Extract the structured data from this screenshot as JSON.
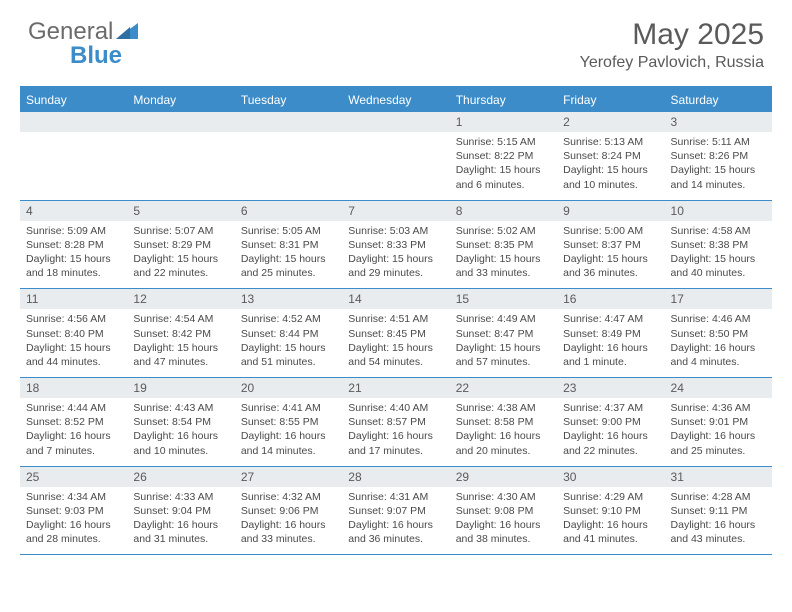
{
  "brand": {
    "left": "General",
    "right": "Blue",
    "tri_color": "#3b8cc9"
  },
  "header": {
    "month": "May 2025",
    "location": "Yerofey Pavlovich, Russia"
  },
  "colors": {
    "accent": "#3b8cc9",
    "header_bg": "#3b8cc9",
    "daynum_bg": "#e9ecef",
    "text": "#5a5a5a",
    "body_text": "#4a4a4a",
    "border": "#3b8cc9",
    "background": "#ffffff"
  },
  "typography": {
    "month_title_fontsize": 30,
    "location_fontsize": 16,
    "dow_fontsize": 12,
    "daynum_fontsize": 12,
    "body_fontsize": 10.5
  },
  "dow": [
    "Sunday",
    "Monday",
    "Tuesday",
    "Wednesday",
    "Thursday",
    "Friday",
    "Saturday"
  ],
  "weeks": [
    [
      {
        "n": "",
        "lines": []
      },
      {
        "n": "",
        "lines": []
      },
      {
        "n": "",
        "lines": []
      },
      {
        "n": "",
        "lines": []
      },
      {
        "n": "1",
        "lines": [
          "Sunrise: 5:15 AM",
          "Sunset: 8:22 PM",
          "Daylight: 15 hours",
          "and 6 minutes."
        ]
      },
      {
        "n": "2",
        "lines": [
          "Sunrise: 5:13 AM",
          "Sunset: 8:24 PM",
          "Daylight: 15 hours",
          "and 10 minutes."
        ]
      },
      {
        "n": "3",
        "lines": [
          "Sunrise: 5:11 AM",
          "Sunset: 8:26 PM",
          "Daylight: 15 hours",
          "and 14 minutes."
        ]
      }
    ],
    [
      {
        "n": "4",
        "lines": [
          "Sunrise: 5:09 AM",
          "Sunset: 8:28 PM",
          "Daylight: 15 hours",
          "and 18 minutes."
        ]
      },
      {
        "n": "5",
        "lines": [
          "Sunrise: 5:07 AM",
          "Sunset: 8:29 PM",
          "Daylight: 15 hours",
          "and 22 minutes."
        ]
      },
      {
        "n": "6",
        "lines": [
          "Sunrise: 5:05 AM",
          "Sunset: 8:31 PM",
          "Daylight: 15 hours",
          "and 25 minutes."
        ]
      },
      {
        "n": "7",
        "lines": [
          "Sunrise: 5:03 AM",
          "Sunset: 8:33 PM",
          "Daylight: 15 hours",
          "and 29 minutes."
        ]
      },
      {
        "n": "8",
        "lines": [
          "Sunrise: 5:02 AM",
          "Sunset: 8:35 PM",
          "Daylight: 15 hours",
          "and 33 minutes."
        ]
      },
      {
        "n": "9",
        "lines": [
          "Sunrise: 5:00 AM",
          "Sunset: 8:37 PM",
          "Daylight: 15 hours",
          "and 36 minutes."
        ]
      },
      {
        "n": "10",
        "lines": [
          "Sunrise: 4:58 AM",
          "Sunset: 8:38 PM",
          "Daylight: 15 hours",
          "and 40 minutes."
        ]
      }
    ],
    [
      {
        "n": "11",
        "lines": [
          "Sunrise: 4:56 AM",
          "Sunset: 8:40 PM",
          "Daylight: 15 hours",
          "and 44 minutes."
        ]
      },
      {
        "n": "12",
        "lines": [
          "Sunrise: 4:54 AM",
          "Sunset: 8:42 PM",
          "Daylight: 15 hours",
          "and 47 minutes."
        ]
      },
      {
        "n": "13",
        "lines": [
          "Sunrise: 4:52 AM",
          "Sunset: 8:44 PM",
          "Daylight: 15 hours",
          "and 51 minutes."
        ]
      },
      {
        "n": "14",
        "lines": [
          "Sunrise: 4:51 AM",
          "Sunset: 8:45 PM",
          "Daylight: 15 hours",
          "and 54 minutes."
        ]
      },
      {
        "n": "15",
        "lines": [
          "Sunrise: 4:49 AM",
          "Sunset: 8:47 PM",
          "Daylight: 15 hours",
          "and 57 minutes."
        ]
      },
      {
        "n": "16",
        "lines": [
          "Sunrise: 4:47 AM",
          "Sunset: 8:49 PM",
          "Daylight: 16 hours",
          "and 1 minute."
        ]
      },
      {
        "n": "17",
        "lines": [
          "Sunrise: 4:46 AM",
          "Sunset: 8:50 PM",
          "Daylight: 16 hours",
          "and 4 minutes."
        ]
      }
    ],
    [
      {
        "n": "18",
        "lines": [
          "Sunrise: 4:44 AM",
          "Sunset: 8:52 PM",
          "Daylight: 16 hours",
          "and 7 minutes."
        ]
      },
      {
        "n": "19",
        "lines": [
          "Sunrise: 4:43 AM",
          "Sunset: 8:54 PM",
          "Daylight: 16 hours",
          "and 10 minutes."
        ]
      },
      {
        "n": "20",
        "lines": [
          "Sunrise: 4:41 AM",
          "Sunset: 8:55 PM",
          "Daylight: 16 hours",
          "and 14 minutes."
        ]
      },
      {
        "n": "21",
        "lines": [
          "Sunrise: 4:40 AM",
          "Sunset: 8:57 PM",
          "Daylight: 16 hours",
          "and 17 minutes."
        ]
      },
      {
        "n": "22",
        "lines": [
          "Sunrise: 4:38 AM",
          "Sunset: 8:58 PM",
          "Daylight: 16 hours",
          "and 20 minutes."
        ]
      },
      {
        "n": "23",
        "lines": [
          "Sunrise: 4:37 AM",
          "Sunset: 9:00 PM",
          "Daylight: 16 hours",
          "and 22 minutes."
        ]
      },
      {
        "n": "24",
        "lines": [
          "Sunrise: 4:36 AM",
          "Sunset: 9:01 PM",
          "Daylight: 16 hours",
          "and 25 minutes."
        ]
      }
    ],
    [
      {
        "n": "25",
        "lines": [
          "Sunrise: 4:34 AM",
          "Sunset: 9:03 PM",
          "Daylight: 16 hours",
          "and 28 minutes."
        ]
      },
      {
        "n": "26",
        "lines": [
          "Sunrise: 4:33 AM",
          "Sunset: 9:04 PM",
          "Daylight: 16 hours",
          "and 31 minutes."
        ]
      },
      {
        "n": "27",
        "lines": [
          "Sunrise: 4:32 AM",
          "Sunset: 9:06 PM",
          "Daylight: 16 hours",
          "and 33 minutes."
        ]
      },
      {
        "n": "28",
        "lines": [
          "Sunrise: 4:31 AM",
          "Sunset: 9:07 PM",
          "Daylight: 16 hours",
          "and 36 minutes."
        ]
      },
      {
        "n": "29",
        "lines": [
          "Sunrise: 4:30 AM",
          "Sunset: 9:08 PM",
          "Daylight: 16 hours",
          "and 38 minutes."
        ]
      },
      {
        "n": "30",
        "lines": [
          "Sunrise: 4:29 AM",
          "Sunset: 9:10 PM",
          "Daylight: 16 hours",
          "and 41 minutes."
        ]
      },
      {
        "n": "31",
        "lines": [
          "Sunrise: 4:28 AM",
          "Sunset: 9:11 PM",
          "Daylight: 16 hours",
          "and 43 minutes."
        ]
      }
    ]
  ]
}
